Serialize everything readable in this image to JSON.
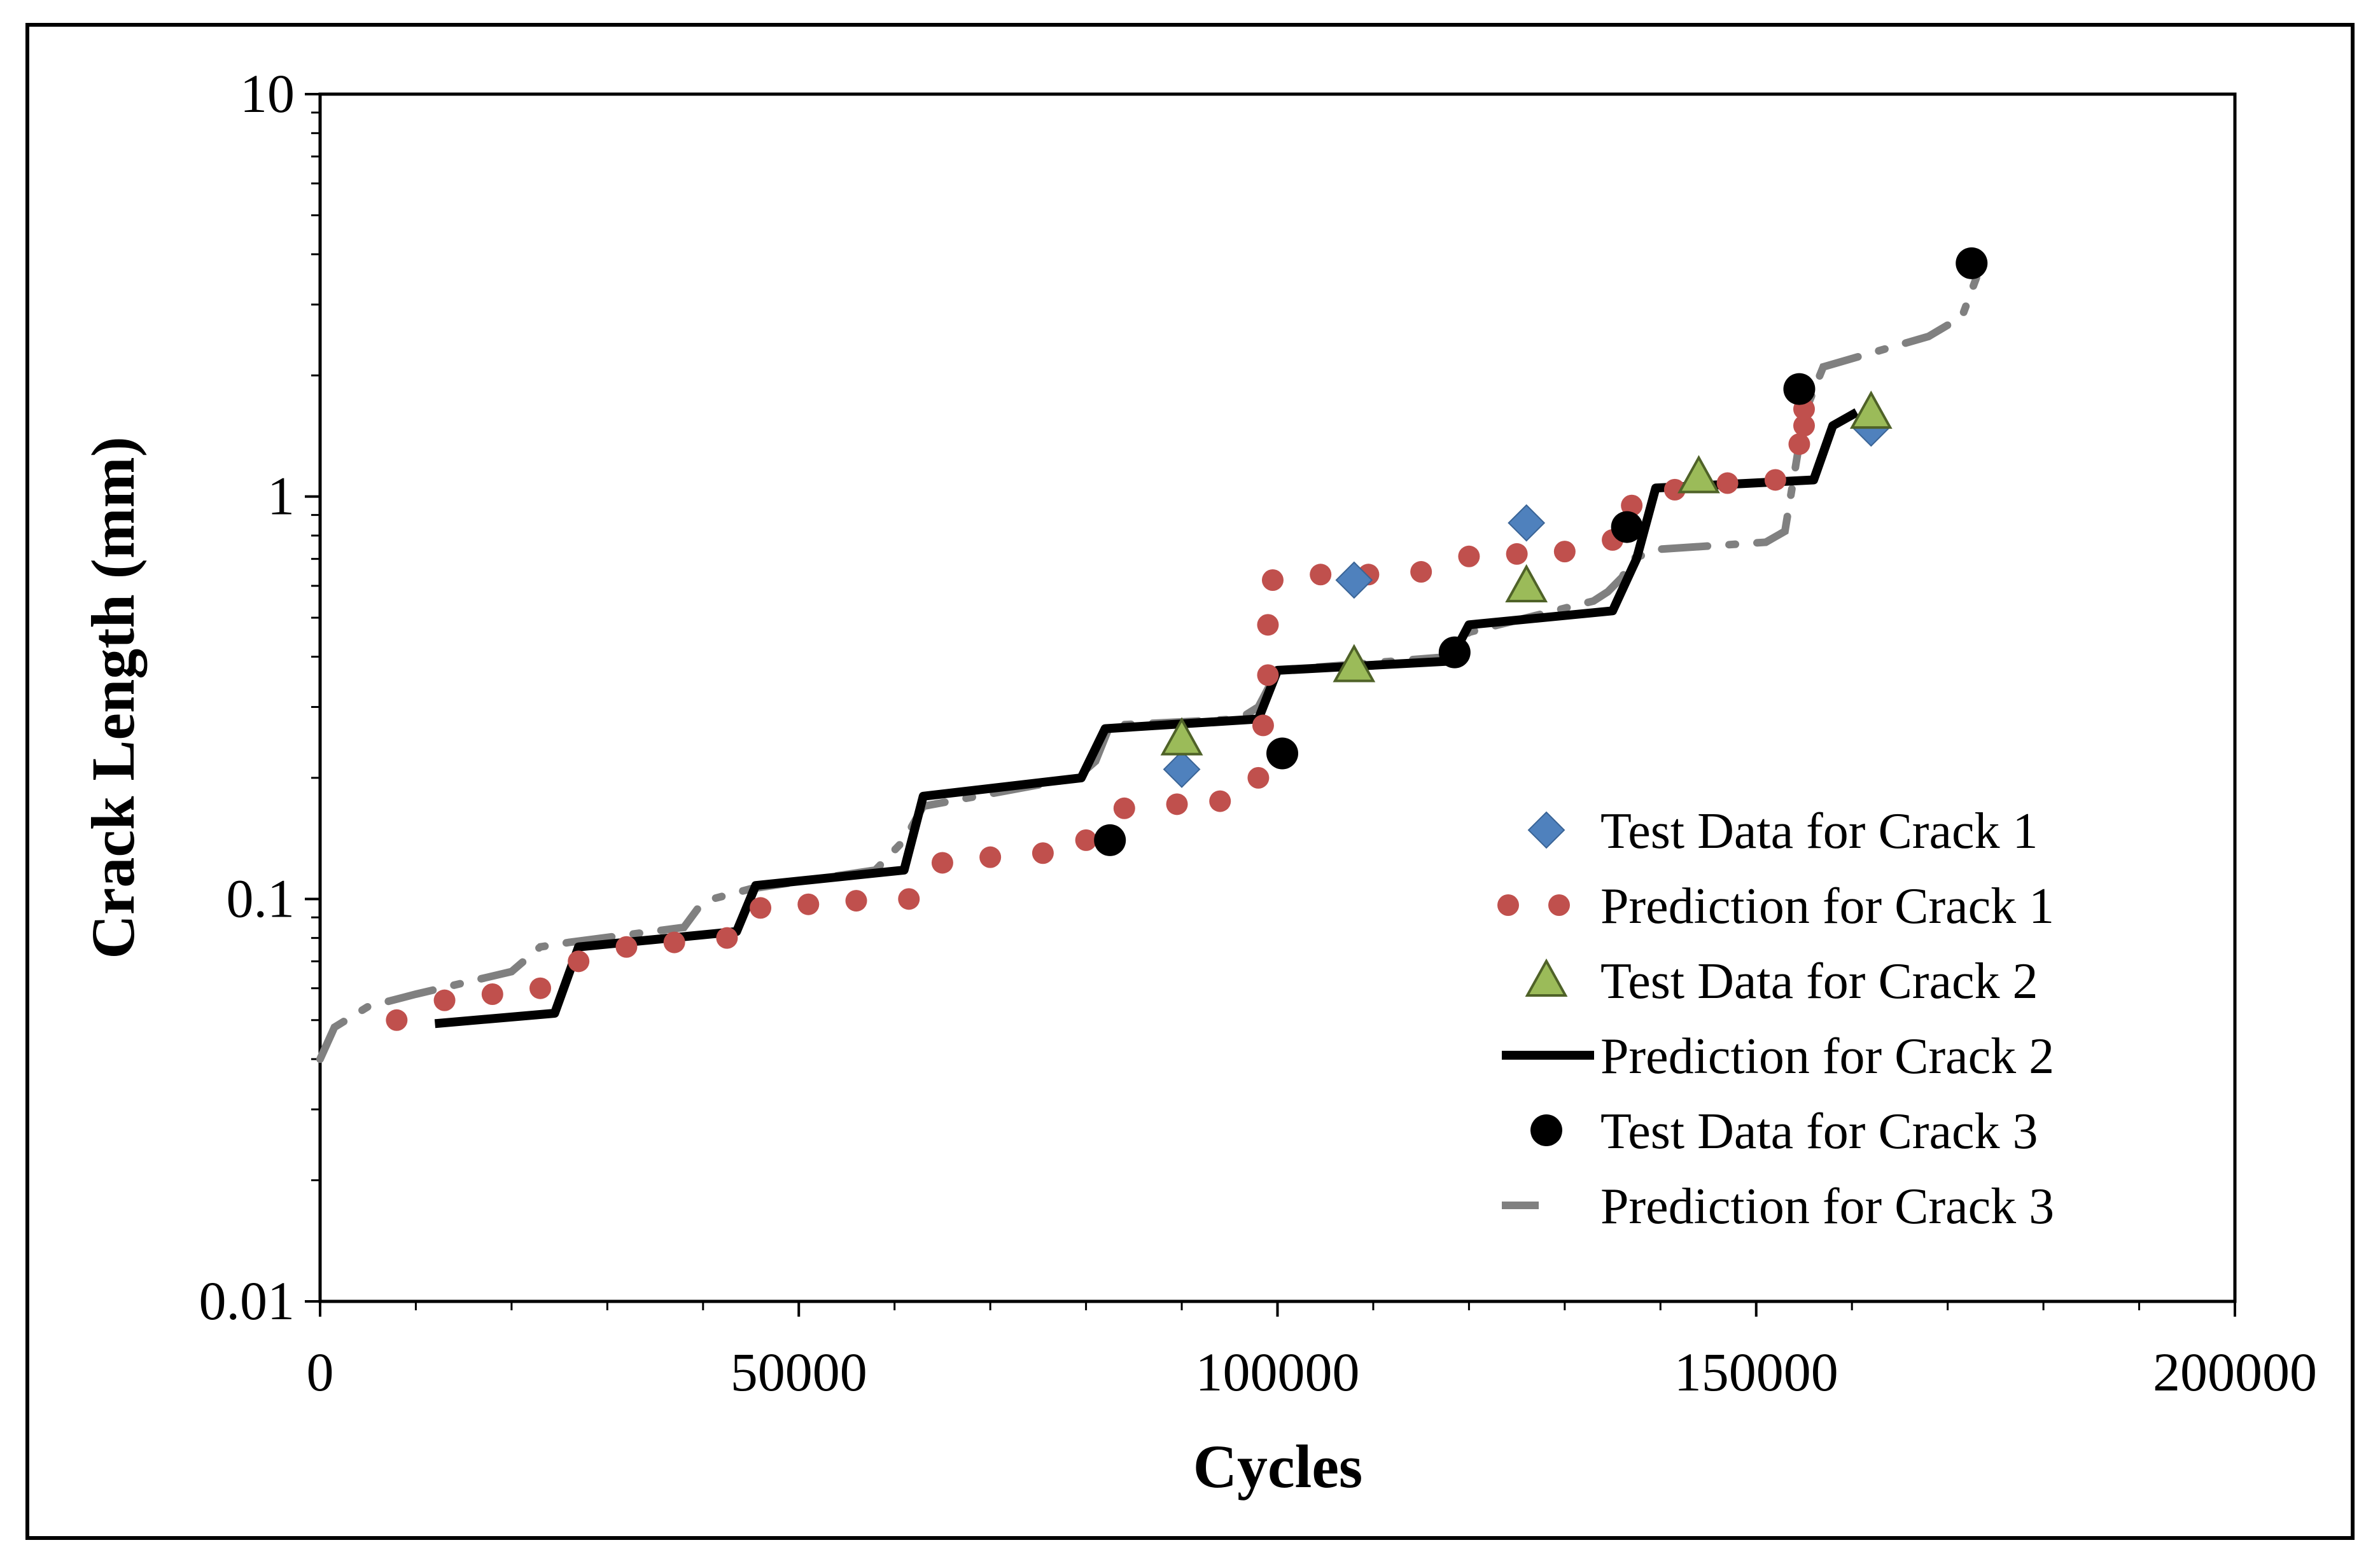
{
  "chart_data": {
    "type": "scatter",
    "title": "",
    "xlabel": "Cycles",
    "ylabel": "Crack Length (mm)",
    "xlim": [
      0,
      200000
    ],
    "ylim": [
      0.01,
      10
    ],
    "yscale": "log",
    "x_ticks": [
      0,
      50000,
      100000,
      150000,
      200000
    ],
    "x_tick_labels": [
      "0",
      "50000",
      "100000",
      "150000",
      "200000"
    ],
    "y_ticks": [
      0.01,
      0.1,
      1,
      10
    ],
    "y_tick_labels": [
      "0.01",
      "0.1",
      "1",
      "10"
    ],
    "grid": false,
    "legend_position": "bottom-right",
    "series": [
      {
        "name": "Test Data for Crack 1",
        "kind": "markers",
        "marker": "diamond",
        "color": "#4F81BD",
        "x": [
          90000,
          108000,
          126000,
          162000
        ],
        "y": [
          0.21,
          0.62,
          0.86,
          1.48
        ]
      },
      {
        "name": "Prediction for Crack 1",
        "kind": "dots",
        "color": "#C0504D",
        "x": [
          8000,
          13000,
          18000,
          23000,
          27000,
          32000,
          37000,
          42500,
          46000,
          51000,
          56000,
          61500,
          65000,
          70000,
          75500,
          80000,
          84000,
          89500,
          94000,
          98000,
          98500,
          99000,
          99000,
          99500,
          104500,
          109500,
          115000,
          120000,
          125000,
          130000,
          135000,
          137000,
          141500,
          147000,
          152000,
          154500,
          155000,
          155000
        ],
        "y": [
          0.05,
          0.056,
          0.058,
          0.06,
          0.07,
          0.076,
          0.078,
          0.08,
          0.095,
          0.097,
          0.099,
          0.1,
          0.123,
          0.127,
          0.13,
          0.14,
          0.168,
          0.172,
          0.175,
          0.2,
          0.27,
          0.36,
          0.48,
          0.62,
          0.64,
          0.64,
          0.65,
          0.71,
          0.72,
          0.73,
          0.78,
          0.95,
          1.04,
          1.08,
          1.1,
          1.35,
          1.5,
          1.65
        ]
      },
      {
        "name": "Test Data for Crack 2",
        "kind": "markers",
        "marker": "triangle",
        "color": "#9BBB59",
        "x": [
          90000,
          108000,
          126000,
          144000,
          162000
        ],
        "y": [
          0.25,
          0.38,
          0.6,
          1.12,
          1.62
        ]
      },
      {
        "name": "Prediction for Crack 2",
        "kind": "solid",
        "color": "#000000",
        "x": [
          12000,
          24500,
          27000,
          43500,
          45500,
          61000,
          63000,
          79500,
          82000,
          98000,
          100000,
          118000,
          120000,
          135000,
          137000,
          137500,
          139500,
          156000,
          158000,
          160500
        ],
        "y": [
          0.049,
          0.052,
          0.076,
          0.083,
          0.108,
          0.118,
          0.18,
          0.2,
          0.265,
          0.28,
          0.37,
          0.39,
          0.48,
          0.52,
          0.66,
          0.7,
          1.05,
          1.1,
          1.5,
          1.62
        ]
      },
      {
        "name": "Test Data for Crack 3",
        "kind": "markers",
        "marker": "circle",
        "color": "#000000",
        "x": [
          82500,
          100500,
          118500,
          136500,
          154500,
          172500
        ],
        "y": [
          0.14,
          0.23,
          0.41,
          0.84,
          1.85,
          3.8
        ]
      },
      {
        "name": "Prediction for Crack 3",
        "kind": "dashdot",
        "color": "#808080",
        "x": [
          0,
          1500,
          5000,
          10000,
          20000,
          23000,
          26000,
          38000,
          39500,
          41000,
          45000,
          58000,
          61000,
          63000,
          79000,
          81000,
          82500,
          96000,
          98000,
          100000,
          118000,
          120000,
          133000,
          134500,
          136000,
          137000,
          138500,
          140000,
          151000,
          153000,
          155000,
          157000,
          168000,
          171500,
          173000
        ],
        "y": [
          0.04,
          0.048,
          0.054,
          0.058,
          0.066,
          0.076,
          0.078,
          0.085,
          0.095,
          0.1,
          0.106,
          0.118,
          0.14,
          0.17,
          0.2,
          0.22,
          0.27,
          0.28,
          0.3,
          0.37,
          0.4,
          0.46,
          0.55,
          0.58,
          0.63,
          0.7,
          0.72,
          0.74,
          0.77,
          0.82,
          1.6,
          2.1,
          2.5,
          2.8,
          3.5
        ]
      }
    ]
  }
}
